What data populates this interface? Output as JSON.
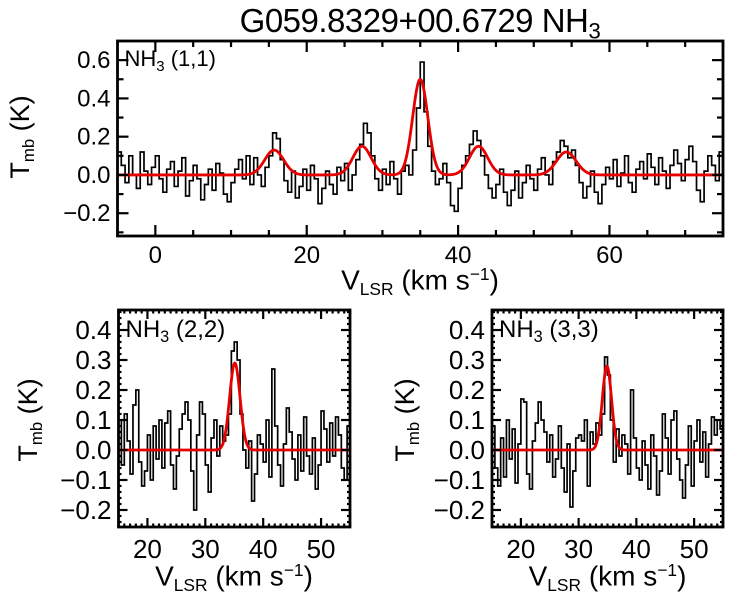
{
  "title": {
    "main": "G059.8329+00.6729 NH",
    "sub": "3"
  },
  "colors": {
    "data_line": "#000000",
    "fit_line": "#e60000",
    "background": "#ffffff"
  },
  "axis_labels": {
    "x": {
      "pre": "V",
      "sub": "LSR",
      "mid": " (km s",
      "sup": "−1",
      "post": ")"
    },
    "y": {
      "pre": "T",
      "sub": "mb",
      "post": " (K)"
    }
  },
  "chart_data": [
    {
      "id": "nh3_11",
      "type": "line",
      "label": {
        "pre": "NH",
        "sub": "3",
        "post": " (1,1)"
      },
      "xlabel": "V_LSR (km s^-1)",
      "ylabel": "T_mb (K)",
      "xrange": [
        -5,
        75
      ],
      "yrange": [
        -0.319,
        0.7
      ],
      "xticks": {
        "major": [
          0,
          20,
          40,
          60
        ],
        "labels": [
          "0",
          "20",
          "40",
          "60"
        ],
        "minor_step": 5
      },
      "yticks": {
        "major": [
          -0.2,
          0.0,
          0.2,
          0.4,
          0.6
        ],
        "labels": [
          "−0.2",
          "0.0",
          "0.2",
          "0.4",
          "0.6"
        ],
        "minor_step": 0.1
      },
      "fit_gaussians": [
        {
          "center": 15.7,
          "amp": 0.13,
          "sigma": 1.25
        },
        {
          "center": 27.3,
          "amp": 0.15,
          "sigma": 1.2
        },
        {
          "center": 35.0,
          "amp": 0.5,
          "sigma": 1.0
        },
        {
          "center": 42.7,
          "amp": 0.15,
          "sigma": 1.2
        },
        {
          "center": 54.3,
          "amp": 0.12,
          "sigma": 1.3
        }
      ],
      "spectrum": {
        "x_start": -5,
        "dx": 0.5,
        "values": [
          0.12,
          0.05,
          -0.04,
          0.1,
          0.0,
          -0.07,
          0.12,
          0.02,
          -0.05,
          0.04,
          0.1,
          -0.02,
          -0.09,
          0.03,
          0.07,
          -0.06,
          0.02,
          0.09,
          -0.11,
          -0.03,
          0.05,
          -0.02,
          -0.13,
          -0.05,
          0.03,
          -0.08,
          0.06,
          0.01,
          -0.1,
          -0.14,
          -0.04,
          0.03,
          0.08,
          -0.02,
          0.1,
          -0.05,
          0.09,
          0.0,
          -0.06,
          0.04,
          0.1,
          0.22,
          0.19,
          0.08,
          -0.03,
          -0.09,
          0.02,
          -0.12,
          -0.06,
          0.03,
          -0.08,
          0.05,
          -0.02,
          -0.15,
          -0.07,
          0.02,
          -0.05,
          -0.1,
          0.04,
          -0.03,
          0.06,
          -0.08,
          0.0,
          0.08,
          0.16,
          0.27,
          0.22,
          0.1,
          -0.02,
          -0.08,
          0.03,
          -0.05,
          0.07,
          -0.02,
          -0.1,
          0.02,
          0.05,
          0.0,
          0.13,
          0.35,
          0.59,
          0.33,
          0.15,
          0.02,
          -0.05,
          -0.02,
          0.06,
          -0.04,
          -0.16,
          -0.19,
          -0.07,
          0.05,
          0.1,
          0.16,
          0.23,
          0.18,
          0.1,
          0.0,
          -0.07,
          -0.12,
          -0.05,
          0.03,
          -0.09,
          -0.16,
          -0.08,
          0.02,
          -0.12,
          -0.04,
          0.05,
          -0.02,
          -0.08,
          0.03,
          0.09,
          0.0,
          -0.05,
          0.07,
          0.12,
          0.18,
          0.15,
          0.09,
          0.13,
          0.05,
          -0.04,
          -0.12,
          -0.06,
          0.02,
          -0.09,
          -0.15,
          -0.05,
          0.04,
          -0.02,
          0.08,
          -0.06,
          0.01,
          0.1,
          -0.04,
          -0.09,
          0.03,
          0.07,
          -0.02,
          0.11,
          0.04,
          -0.05,
          0.09,
          0.02,
          -0.07,
          0.05,
          0.13,
          0.06,
          -0.03,
          0.08,
          0.15,
          0.07,
          -0.08,
          -0.14,
          0.02,
          0.1,
          0.05,
          -0.03,
          0.12
        ]
      }
    },
    {
      "id": "nh3_22",
      "type": "line",
      "label": {
        "pre": "NH",
        "sub": "3",
        "post": " (2,2)"
      },
      "xlabel": "V_LSR (km s^-1)",
      "ylabel": "T_mb (K)",
      "xrange": [
        15,
        55
      ],
      "yrange": [
        -0.2567,
        0.4667
      ],
      "xticks": {
        "major": [
          20,
          30,
          40,
          50
        ],
        "labels": [
          "20",
          "30",
          "40",
          "50"
        ],
        "minor_step": 1
      },
      "yticks": {
        "major": [
          -0.2,
          -0.1,
          0.0,
          0.1,
          0.2,
          0.3,
          0.4
        ],
        "labels": [
          "−0.2",
          "−0.1",
          "0.0",
          "0.1",
          "0.2",
          "0.3",
          "0.4"
        ],
        "minor_step": 0.02
      },
      "fit_gaussians": [
        {
          "center": 35.1,
          "amp": 0.29,
          "sigma": 0.9
        }
      ],
      "spectrum": {
        "x_start": 15,
        "dx": 0.5,
        "values": [
          0.1,
          -0.05,
          0.12,
          0.03,
          -0.08,
          0.15,
          0.2,
          -0.04,
          -0.12,
          -0.07,
          0.05,
          -0.1,
          0.08,
          -0.03,
          0.1,
          -0.06,
          0.09,
          0.13,
          -0.05,
          -0.13,
          -0.02,
          0.07,
          0.12,
          0.16,
          0.1,
          -0.07,
          -0.2,
          0.05,
          0.16,
          0.12,
          -0.05,
          -0.14,
          0.04,
          0.1,
          -0.02,
          0.08,
          0.03,
          0.05,
          0.12,
          0.33,
          0.36,
          0.3,
          0.12,
          0.0,
          -0.06,
          0.03,
          -0.17,
          -0.08,
          0.05,
          0.02,
          -0.04,
          0.1,
          -0.09,
          0.27,
          0.08,
          -0.05,
          -0.12,
          0.02,
          0.14,
          0.06,
          -0.03,
          -0.1,
          0.05,
          -0.07,
          0.11,
          -0.02,
          -0.08,
          0.04,
          -0.13,
          -0.05,
          0.13,
          0.07,
          -0.04,
          0.09,
          -0.02,
          0.11,
          0.05,
          -0.06,
          -0.1,
          0.08
        ]
      }
    },
    {
      "id": "nh3_33",
      "type": "line",
      "label": {
        "pre": "NH",
        "sub": "3",
        "post": " (3,3)"
      },
      "xlabel": "V_LSR (km s^-1)",
      "ylabel": "T_mb (K)",
      "xrange": [
        15,
        55
      ],
      "yrange": [
        -0.2567,
        0.4667
      ],
      "xticks": {
        "major": [
          20,
          30,
          40,
          50
        ],
        "labels": [
          "20",
          "30",
          "40",
          "50"
        ],
        "minor_step": 1
      },
      "yticks": {
        "major": [
          -0.2,
          -0.1,
          0.0,
          0.1,
          0.2,
          0.3,
          0.4
        ],
        "labels": [
          "−0.2",
          "−0.1",
          "0.0",
          "0.1",
          "0.2",
          "0.3",
          "0.4"
        ],
        "minor_step": 0.02
      },
      "fit_gaussians": [
        {
          "center": 34.9,
          "amp": 0.28,
          "sigma": 0.8
        }
      ],
      "spectrum": {
        "x_start": 15,
        "dx": 0.5,
        "values": [
          0.08,
          -0.06,
          -0.12,
          0.04,
          -0.09,
          0.1,
          -0.03,
          0.07,
          -0.11,
          0.02,
          0.17,
          0.16,
          -0.08,
          -0.13,
          0.03,
          0.09,
          0.16,
          0.1,
          0.06,
          -0.04,
          0.05,
          -0.09,
          -0.03,
          0.08,
          -0.06,
          -0.14,
          0.02,
          -0.19,
          -0.07,
          0.04,
          0.05,
          0.03,
          0.1,
          -0.12,
          0.06,
          0.02,
          0.09,
          0.05,
          0.12,
          0.31,
          0.25,
          0.1,
          -0.04,
          0.07,
          -0.02,
          0.05,
          0.02,
          -0.08,
          0.2,
          0.04,
          -0.06,
          -0.1,
          0.03,
          -0.05,
          -0.13,
          0.05,
          -0.02,
          -0.15,
          -0.07,
          0.12,
          0.04,
          -0.08,
          0.1,
          0.13,
          -0.03,
          -0.1,
          -0.16,
          -0.05,
          0.08,
          -0.12,
          0.03,
          0.1,
          -0.04,
          0.06,
          -0.09,
          0.02,
          0.11,
          0.05,
          0.1,
          0.07
        ]
      }
    }
  ]
}
